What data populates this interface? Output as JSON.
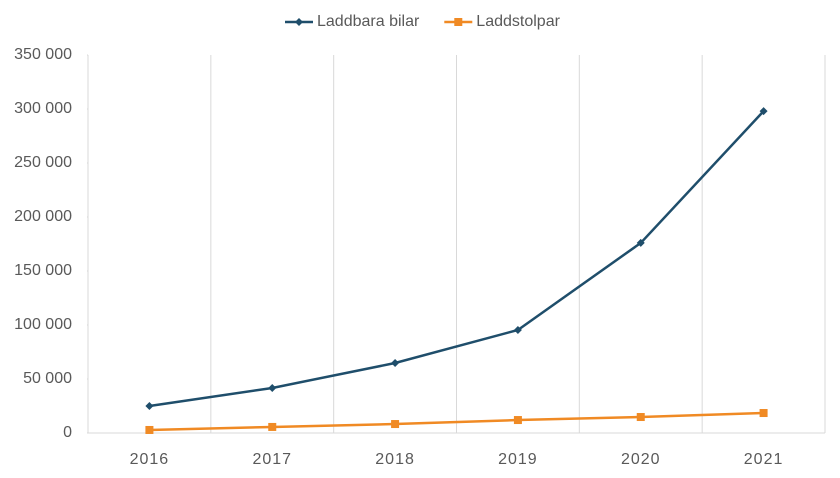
{
  "chart_data": {
    "type": "line",
    "categories": [
      "2016",
      "2017",
      "2018",
      "2019",
      "2020",
      "2021"
    ],
    "series": [
      {
        "name": "Laddbara bilar",
        "color": "#1f4e6b",
        "marker": "diamond",
        "values": [
          25000,
          41700,
          64800,
          95400,
          176000,
          298000
        ]
      },
      {
        "name": "Laddstolpar",
        "color": "#f08a24",
        "marker": "square",
        "values": [
          2800,
          5600,
          8300,
          12000,
          14800,
          18500
        ]
      }
    ],
    "ylim": [
      0,
      350000
    ],
    "yticks": [
      0,
      {
        "value": 50000,
        "label": "50 000"
      },
      {
        "value": 100000,
        "label": "100 000"
      },
      {
        "value": 150000,
        "label": "150 000"
      },
      {
        "value": 200000,
        "label": "200 000"
      },
      {
        "value": 250000,
        "label": "250 000"
      },
      {
        "value": 300000,
        "label": "300 000"
      },
      {
        "value": 350000,
        "label": "350 000"
      }
    ],
    "vertical_grid": true,
    "legend": "top"
  }
}
